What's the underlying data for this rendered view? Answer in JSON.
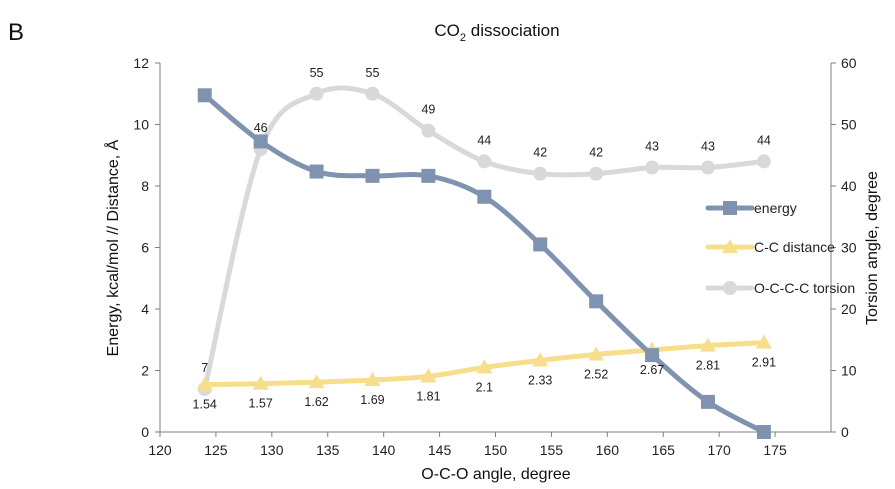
{
  "panel_label": "B",
  "chart_data": {
    "type": "line",
    "title_main": "CO",
    "title_sub": "2",
    "title_rest": " dissociation",
    "xlabel": "O-C-O angle, degree",
    "ylabel_left": "Energy, kcal/mol // Distance, Å",
    "ylabel_right": "Torsion angle, degree",
    "xlim": [
      120,
      180
    ],
    "xticks": [
      "120",
      "125",
      "130",
      "135",
      "140",
      "145",
      "150",
      "155",
      "160",
      "165",
      "170",
      "175"
    ],
    "ylim_left": [
      0,
      12
    ],
    "yticks_left": [
      "0",
      "2",
      "4",
      "6",
      "8",
      "10",
      "12"
    ],
    "ylim_right": [
      0,
      60
    ],
    "yticks_right": [
      "0",
      "10",
      "20",
      "30",
      "40",
      "50",
      "60"
    ],
    "grid": false,
    "legend_position": "center-right",
    "x": [
      124,
      129,
      134,
      139,
      144,
      149,
      154,
      159,
      164,
      169,
      174
    ],
    "series": [
      {
        "name": "energy",
        "axis": "left",
        "marker": "square",
        "color": "#7f93b0",
        "values": [
          10.95,
          9.45,
          8.47,
          8.33,
          8.33,
          7.65,
          6.1,
          4.25,
          2.5,
          0.98,
          0.0
        ],
        "labels": []
      },
      {
        "name": "C-C distance",
        "axis": "left",
        "marker": "triangle",
        "color": "#f7de8a",
        "values": [
          1.54,
          1.57,
          1.62,
          1.69,
          1.81,
          2.1,
          2.33,
          2.52,
          2.67,
          2.81,
          2.91
        ],
        "labels": [
          "1.54",
          "1.57",
          "1.62",
          "1.69",
          "1.81",
          "2.1",
          "2.33",
          "2.52",
          "2.67",
          "2.81",
          "2.91"
        ]
      },
      {
        "name": "O-C-C-C torsion",
        "axis": "right",
        "marker": "circle",
        "color": "#d9d9d9",
        "values": [
          7,
          46,
          55,
          55,
          49,
          44,
          42,
          42,
          43,
          43,
          44
        ],
        "labels": [
          "7",
          "46",
          "55",
          "55",
          "49",
          "44",
          "42",
          "42",
          "43",
          "43",
          "44"
        ]
      }
    ]
  }
}
